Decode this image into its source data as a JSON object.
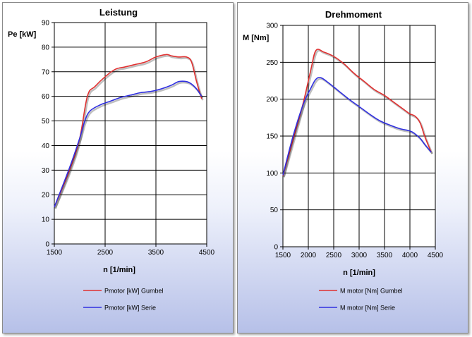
{
  "chart_data": [
    {
      "type": "line",
      "title": "Leistung",
      "xlabel": "n [1/min]",
      "ylabel": "Pe [kW]",
      "xlim": [
        1500,
        4500
      ],
      "ylim": [
        0,
        90
      ],
      "xticks": [
        1500,
        2500,
        3500,
        4500
      ],
      "yticks": [
        0,
        10,
        20,
        30,
        40,
        50,
        60,
        70,
        80,
        90
      ],
      "grid": true,
      "legend_position": "bottom",
      "series": [
        {
          "name": "Pmotor [kW] Gumbel",
          "color": "#e03030",
          "x": [
            1500,
            1800,
            2000,
            2150,
            2300,
            2500,
            2700,
            2900,
            3100,
            3300,
            3500,
            3700,
            3800,
            3950,
            4100,
            4200,
            4300,
            4400
          ],
          "y": [
            15,
            30,
            43,
            60,
            64,
            68,
            71,
            72,
            73,
            74,
            76,
            77,
            76.5,
            76,
            76,
            74,
            66,
            59
          ]
        },
        {
          "name": "Pmotor [kW] Serie",
          "color": "#3030e0",
          "x": [
            1500,
            1800,
            2000,
            2100,
            2200,
            2400,
            2600,
            2800,
            3000,
            3200,
            3400,
            3600,
            3800,
            3950,
            4100,
            4200,
            4300,
            4400
          ],
          "y": [
            15,
            31,
            43,
            50,
            54,
            56.5,
            58,
            59.5,
            60.5,
            61.5,
            62,
            63,
            64.5,
            66,
            66,
            65,
            63,
            60
          ]
        }
      ]
    },
    {
      "type": "line",
      "title": "Drehmoment",
      "xlabel": "n [1/min]",
      "ylabel": "M [Nm]",
      "xlim": [
        1500,
        4500
      ],
      "ylim": [
        0,
        300
      ],
      "xticks": [
        1500,
        2000,
        2500,
        3000,
        3500,
        4000,
        4500
      ],
      "yticks": [
        0,
        50,
        100,
        150,
        200,
        250,
        300
      ],
      "grid": true,
      "legend_position": "bottom",
      "series": [
        {
          "name": "M motor [Nm] Gumbel",
          "color": "#e03030",
          "x": [
            1500,
            1700,
            1900,
            2050,
            2150,
            2300,
            2500,
            2700,
            2900,
            3100,
            3300,
            3500,
            3700,
            3900,
            4000,
            4100,
            4200,
            4300,
            4420
          ],
          "y": [
            96,
            145,
            195,
            240,
            266,
            264,
            258,
            248,
            235,
            224,
            213,
            205,
            195,
            185,
            180,
            177,
            168,
            148,
            128
          ]
        },
        {
          "name": "M motor [Nm] Serie",
          "color": "#3030e0",
          "x": [
            1500,
            1700,
            1900,
            2050,
            2150,
            2250,
            2400,
            2600,
            2800,
            3000,
            3200,
            3400,
            3600,
            3800,
            4000,
            4100,
            4200,
            4300,
            4420
          ],
          "y": [
            97,
            150,
            193,
            215,
            227,
            229,
            222,
            211,
            200,
            190,
            180,
            171,
            165,
            160,
            157,
            153,
            147,
            138,
            128
          ]
        }
      ]
    }
  ]
}
